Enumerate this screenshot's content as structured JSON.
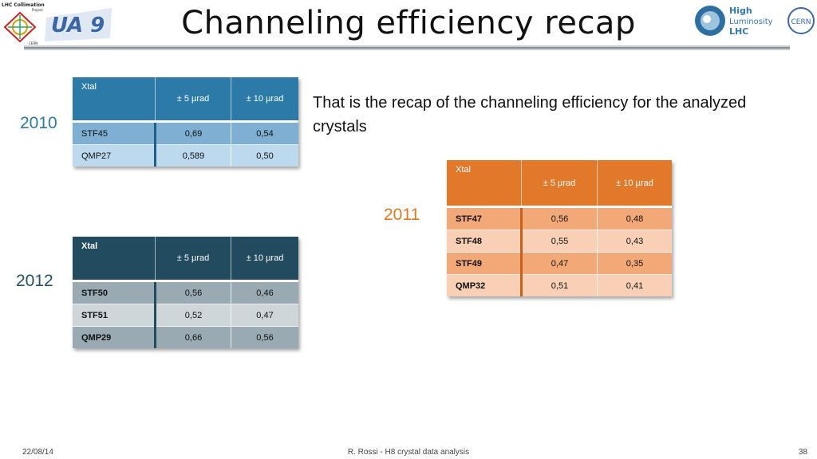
{
  "header": {
    "title": "Channeling efficiency recap",
    "logo_left_text_1": "LHC Collimation",
    "logo_left_text_2": "Project",
    "logo_left_text_3": "CERN",
    "logo_ua9_text": "UA 9",
    "logo_hl_text_1": "High",
    "logo_hl_text_2": "Luminosity",
    "logo_hl_text_3": "LHC",
    "logo_cern_text": "CERN"
  },
  "intro_text": "That is the recap of the channeling efficiency for the analyzed crystals",
  "tables": {
    "t2010": {
      "year": "2010",
      "headers": [
        "Xtal",
        "± 5 µrad",
        "± 10 µrad"
      ],
      "rows": [
        [
          "STF45",
          "0,69",
          "0,54"
        ],
        [
          "QMP27",
          "0,589",
          "0,50"
        ]
      ]
    },
    "t2011": {
      "year": "2011",
      "headers": [
        "Xtal",
        "± 5 µrad",
        "± 10 µrad"
      ],
      "rows": [
        [
          "STF47",
          "0,56",
          "0,48"
        ],
        [
          "STF48",
          "0,55",
          "0,43"
        ],
        [
          "STF49",
          "0,47",
          "0,35"
        ],
        [
          "QMP32",
          "0,51",
          "0,41"
        ]
      ]
    },
    "t2012": {
      "year": "2012",
      "headers": [
        "Xtal",
        "± 5 µrad",
        "± 10 µrad"
      ],
      "rows": [
        [
          "STF50",
          "0,56",
          "0,46"
        ],
        [
          "STF51",
          "0,52",
          "0,47"
        ],
        [
          "QMP29",
          "0,66",
          "0,56"
        ]
      ]
    }
  },
  "footer": {
    "date": "22/08/14",
    "center": "R. Rossi - H8 crystal data analysis",
    "page": "38"
  },
  "colors": {
    "blue_accent": "#2c7aa7",
    "orange_accent": "#e2782a",
    "slate_accent": "#234b60"
  }
}
